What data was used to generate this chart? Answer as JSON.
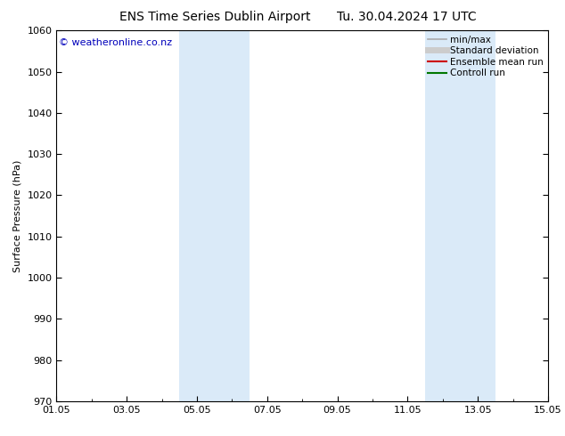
{
  "title_left": "ENS Time Series Dublin Airport",
  "title_right": "Tu. 30.04.2024 17 UTC",
  "ylabel": "Surface Pressure (hPa)",
  "ylim": [
    970,
    1060
  ],
  "yticks": [
    970,
    980,
    990,
    1000,
    1010,
    1020,
    1030,
    1040,
    1050,
    1060
  ],
  "xlim_start": 0,
  "xlim_end": 14,
  "xtick_labels": [
    "01.05",
    "03.05",
    "05.05",
    "07.05",
    "09.05",
    "11.05",
    "13.05",
    "15.05"
  ],
  "xtick_positions": [
    0,
    2,
    4,
    6,
    8,
    10,
    12,
    14
  ],
  "shaded_bands": [
    {
      "x_start": 3.5,
      "x_end": 5.5
    },
    {
      "x_start": 10.5,
      "x_end": 12.5
    }
  ],
  "shade_color": "#daeaf8",
  "background_color": "#ffffff",
  "watermark_text": "© weatheronline.co.nz",
  "watermark_color": "#0000bb",
  "legend_entries": [
    {
      "label": "min/max",
      "color": "#aaaaaa",
      "lw": 1.2
    },
    {
      "label": "Standard deviation",
      "color": "#cccccc",
      "lw": 5
    },
    {
      "label": "Ensemble mean run",
      "color": "#cc0000",
      "lw": 1.5
    },
    {
      "label": "Controll run",
      "color": "#007700",
      "lw": 1.5
    }
  ],
  "tick_color": "#000000",
  "spine_color": "#000000",
  "title_fontsize": 10,
  "axis_label_fontsize": 8,
  "tick_fontsize": 8,
  "watermark_fontsize": 8,
  "legend_fontsize": 7.5
}
